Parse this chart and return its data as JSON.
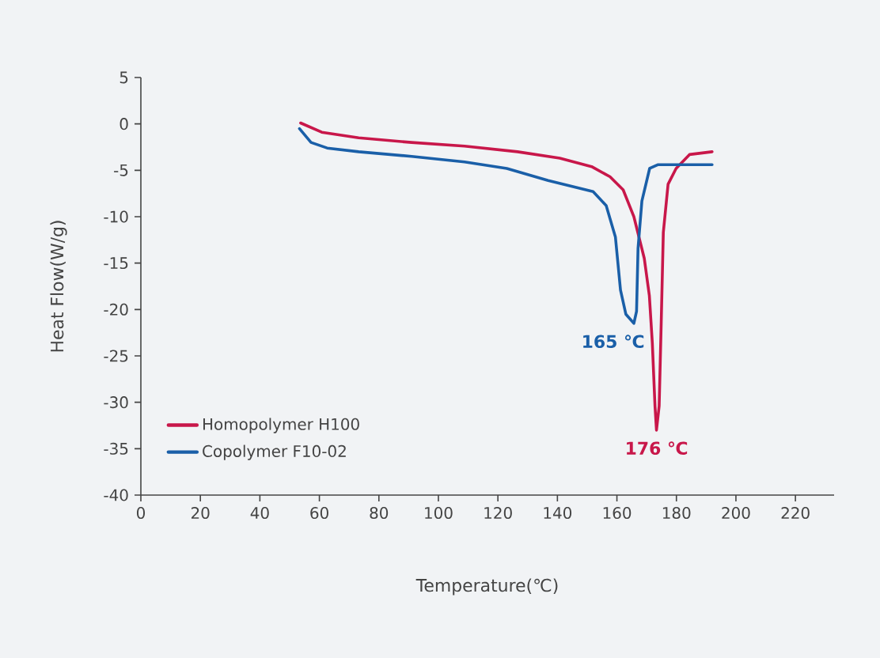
{
  "chart_data": {
    "type": "line",
    "xlabel": "Temperature(℃)",
    "ylabel": "Heat Flow(W/g)",
    "xlim": [
      0,
      233
    ],
    "ylim": [
      -40,
      5
    ],
    "xticks": [
      0,
      20,
      40,
      60,
      80,
      100,
      120,
      140,
      160,
      180,
      200,
      220
    ],
    "yticks": [
      5,
      0,
      -5,
      -10,
      -15,
      -20,
      -25,
      -30,
      -35,
      -40
    ],
    "legend": "bottom left",
    "grid": false,
    "marker": "none",
    "line_style": "solid",
    "series": [
      {
        "name": "Homopolymer H100",
        "color": "#c8174a",
        "x": [
          53.7,
          60.8,
          73.2,
          91,
          108.8,
          126.6,
          140.8,
          151.5,
          157.7,
          162.1,
          165.7,
          169.2,
          170.9,
          171.9,
          172.8,
          173.3,
          174.2,
          174.9,
          175.6,
          177.2,
          179.9,
          184.4,
          192
        ],
        "values": [
          0.1,
          -0.9,
          -1.5,
          -2.0,
          -2.4,
          -3.0,
          -3.7,
          -4.6,
          -5.7,
          -7.1,
          -10,
          -14.5,
          -18.5,
          -23.6,
          -30.4,
          -33,
          -30.4,
          -21.3,
          -11.7,
          -6.5,
          -4.8,
          -3.3,
          -3.0
        ]
      },
      {
        "name": "Copolymer F10-02",
        "color": "#1a5fa8",
        "x": [
          53.3,
          57.2,
          62.6,
          73.2,
          91,
          108.8,
          123,
          136.9,
          152,
          156.4,
          159.5,
          161.2,
          163,
          165.7,
          166.6,
          167.1,
          168.4,
          171,
          173.7,
          192
        ],
        "values": [
          -0.5,
          -2.0,
          -2.6,
          -3.0,
          -3.5,
          -4.1,
          -4.8,
          -6.1,
          -7.3,
          -8.8,
          -12.2,
          -17.9,
          -20.5,
          -21.5,
          -20.2,
          -13.4,
          -8.3,
          -4.8,
          -4.4,
          -4.4
        ]
      }
    ],
    "annotations": [
      {
        "text": "165 ℃",
        "x": 165.7,
        "y": -21.5
      },
      {
        "text": "176 ℃",
        "x": 173.3,
        "y": -33
      }
    ]
  }
}
